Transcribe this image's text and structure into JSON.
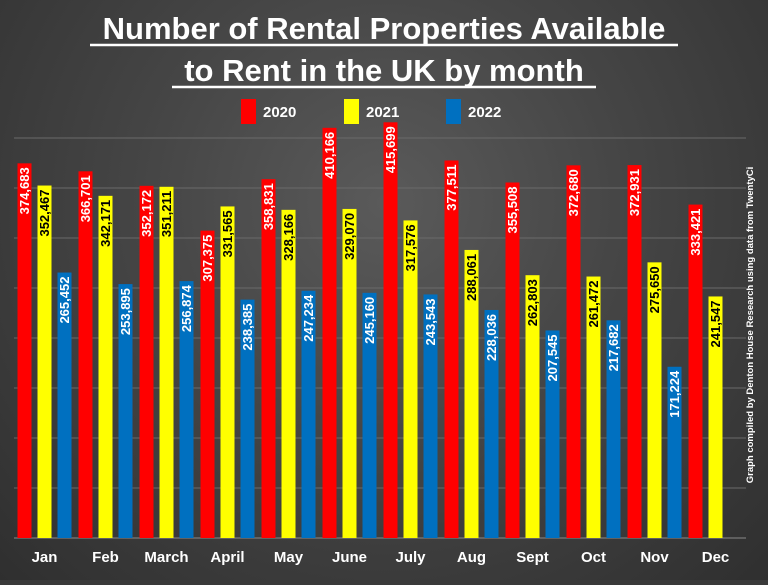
{
  "chart_data": {
    "type": "bar",
    "title_line1": "Number of Rental Properties Available",
    "title_line2": "to Rent in the UK by month",
    "credit": "Graph compiled by Denton House Research using data from TwentyCi",
    "categories": [
      "Jan",
      "Feb",
      "March",
      "April",
      "May",
      "June",
      "July",
      "Aug",
      "Sept",
      "Oct",
      "Nov",
      "Dec"
    ],
    "series": [
      {
        "name": "2020",
        "color": "#ff0000",
        "label_color": "#ffffff",
        "values": [
          374683,
          366701,
          352172,
          307375,
          358831,
          410166,
          415699,
          377511,
          355508,
          372680,
          372931,
          333421
        ],
        "labels": [
          "374,683",
          "366,701",
          "352,172",
          "307,375",
          "358,831",
          "410,166",
          "415,699",
          "377,511",
          "355,508",
          "372,680",
          "372,931",
          "333,421"
        ]
      },
      {
        "name": "2021",
        "color": "#ffff00",
        "label_color": "#000000",
        "values": [
          352467,
          342171,
          351211,
          331565,
          328166,
          329070,
          317576,
          288061,
          262803,
          261472,
          275650,
          241547
        ],
        "labels": [
          "352,467",
          "342,171",
          "351,211",
          "331,565",
          "328,166",
          "329,070",
          "317,576",
          "288,061",
          "262,803",
          "261,472",
          "275,650",
          "241,547"
        ]
      },
      {
        "name": "2022",
        "color": "#0070c0",
        "label_color": "#ffffff",
        "values": [
          265452,
          253895,
          256874,
          238385,
          247234,
          245160,
          243543,
          228036,
          207545,
          217682,
          171224,
          null
        ],
        "labels": [
          "265,452",
          "253,895",
          "256,874",
          "238,385",
          "247,234",
          "245,160",
          "243,543",
          "228,036",
          "207,545",
          "217,682",
          "171,224",
          ""
        ]
      }
    ],
    "ylim": [
      0,
      450000
    ],
    "y_gridlines": [
      50000,
      100000,
      150000,
      200000,
      250000,
      300000,
      350000,
      400000
    ],
    "grid": true,
    "legend_position": "top-center",
    "xlabel": "",
    "ylabel": ""
  }
}
